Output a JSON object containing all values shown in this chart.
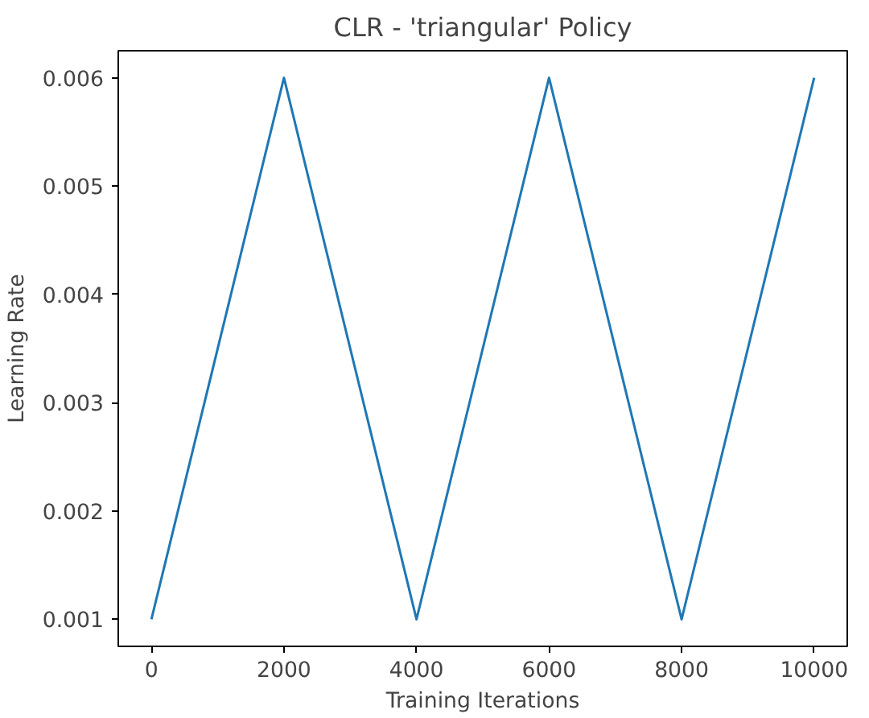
{
  "chart_data": {
    "type": "line",
    "title": "CLR - 'triangular' Policy",
    "xlabel": "Training Iterations",
    "ylabel": "Learning Rate",
    "x": [
      0,
      2000,
      4000,
      6000,
      8000,
      10000
    ],
    "series": [
      {
        "color": "#1f77b4",
        "values": [
          0.001,
          0.006,
          0.001,
          0.006,
          0.001,
          0.006
        ]
      }
    ],
    "xlim": [
      -500,
      10500
    ],
    "ylim": [
      0.00075,
      0.00625
    ],
    "xticks": [
      0,
      2000,
      4000,
      6000,
      8000,
      10000
    ],
    "yticks": [
      {
        "value": 0.001,
        "label": "0.001"
      },
      {
        "value": 0.002,
        "label": "0.002"
      },
      {
        "value": 0.003,
        "label": "0.003"
      },
      {
        "value": 0.004,
        "label": "0.004"
      },
      {
        "value": 0.005,
        "label": "0.005"
      },
      {
        "value": 0.006,
        "label": "0.006"
      }
    ],
    "grid": false
  }
}
